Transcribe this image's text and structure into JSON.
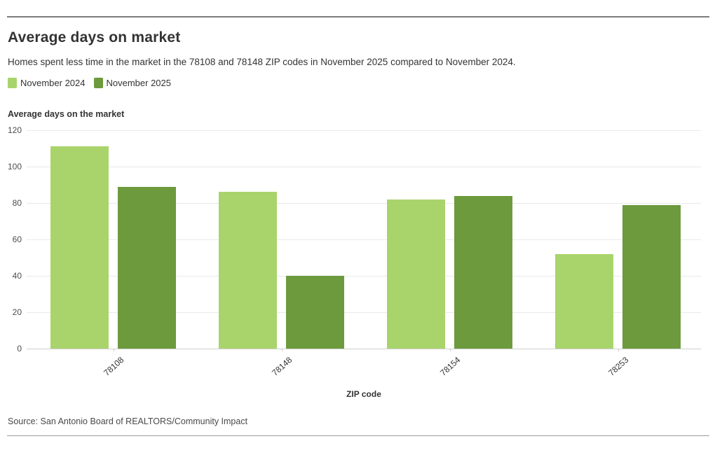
{
  "header": {
    "title": "Average days on market",
    "subtitle": "Homes spent less time in the market in the 78108 and 78148 ZIP codes in November 2025 compared to November 2024."
  },
  "chart_data": {
    "type": "bar",
    "title": "Average days on market",
    "axis_title": "Average days on the market",
    "xlabel": "ZIP code",
    "ylabel": "Average days on the market",
    "categories": [
      "78108",
      "78148",
      "78154",
      "78253"
    ],
    "series": [
      {
        "name": "November 2024",
        "color": "#a9d46c",
        "values": [
          111,
          86,
          82,
          52
        ]
      },
      {
        "name": "November 2025",
        "color": "#6c9a3c",
        "values": [
          89,
          40,
          84,
          79
        ]
      }
    ],
    "ylim": [
      0,
      120
    ],
    "yticks": [
      0,
      20,
      40,
      60,
      80,
      100,
      120
    ],
    "grid": true,
    "legend_position": "top-left"
  },
  "colors": {
    "series_2024": "#a9d46c",
    "series_2025": "#6c9a3c",
    "gridline": "#e9e9e9",
    "baseline": "#cfcfcf",
    "rule_top": "#7c7c7c",
    "rule_bottom": "#9c9c9c",
    "text_dark": "#333333",
    "text_tick": "#4d4d4d"
  },
  "footer": {
    "source": "Source: San Antonio Board of REALTORS/Community Impact"
  }
}
